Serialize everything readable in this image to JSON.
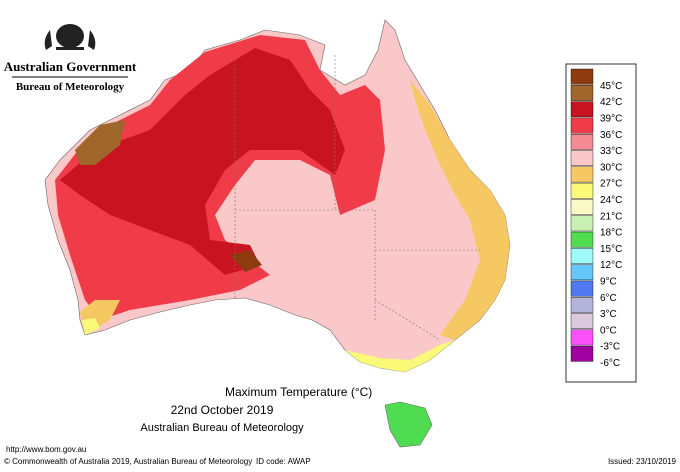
{
  "header": {
    "government": "Australian Government",
    "bureau": "Bureau of Meteorology"
  },
  "title": {
    "line1": "Maximum Temperature (°C)",
    "line2": "22nd October 2019",
    "line3": "Australian Bureau of Meteorology"
  },
  "legend": {
    "items": [
      {
        "label": "45°C",
        "color": "#8e3b10"
      },
      {
        "label": "42°C",
        "color": "#a0672c"
      },
      {
        "label": "39°C",
        "color": "#c81420"
      },
      {
        "label": "36°C",
        "color": "#f03c48"
      },
      {
        "label": "33°C",
        "color": "#f48c96"
      },
      {
        "label": "30°C",
        "color": "#fac8c8"
      },
      {
        "label": "27°C",
        "color": "#f5c864"
      },
      {
        "label": "24°C",
        "color": "#fafa78"
      },
      {
        "label": "21°C",
        "color": "#fafac8"
      },
      {
        "label": "18°C",
        "color": "#c8f0b4"
      },
      {
        "label": "15°C",
        "color": "#50dc50"
      },
      {
        "label": "12°C",
        "color": "#a0fafa"
      },
      {
        "label": "9°C",
        "color": "#64c8fa"
      },
      {
        "label": "6°C",
        "color": "#5078f0"
      },
      {
        "label": "3°C",
        "color": "#b4b4dc"
      },
      {
        "label": "0°C",
        "color": "#dcc8dc"
      },
      {
        "label": "-3°C",
        "color": "#fa50fa"
      },
      {
        "label": "-6°C",
        "color": "#a000a0"
      }
    ]
  },
  "footer": {
    "url": "http://www.bom.gov.au",
    "copyright": "© Commonwealth of Australia 2019, Australian Bureau of Meteorology",
    "id_code": "ID code: AWAP",
    "issued": "Issued: 23/10/2019"
  }
}
